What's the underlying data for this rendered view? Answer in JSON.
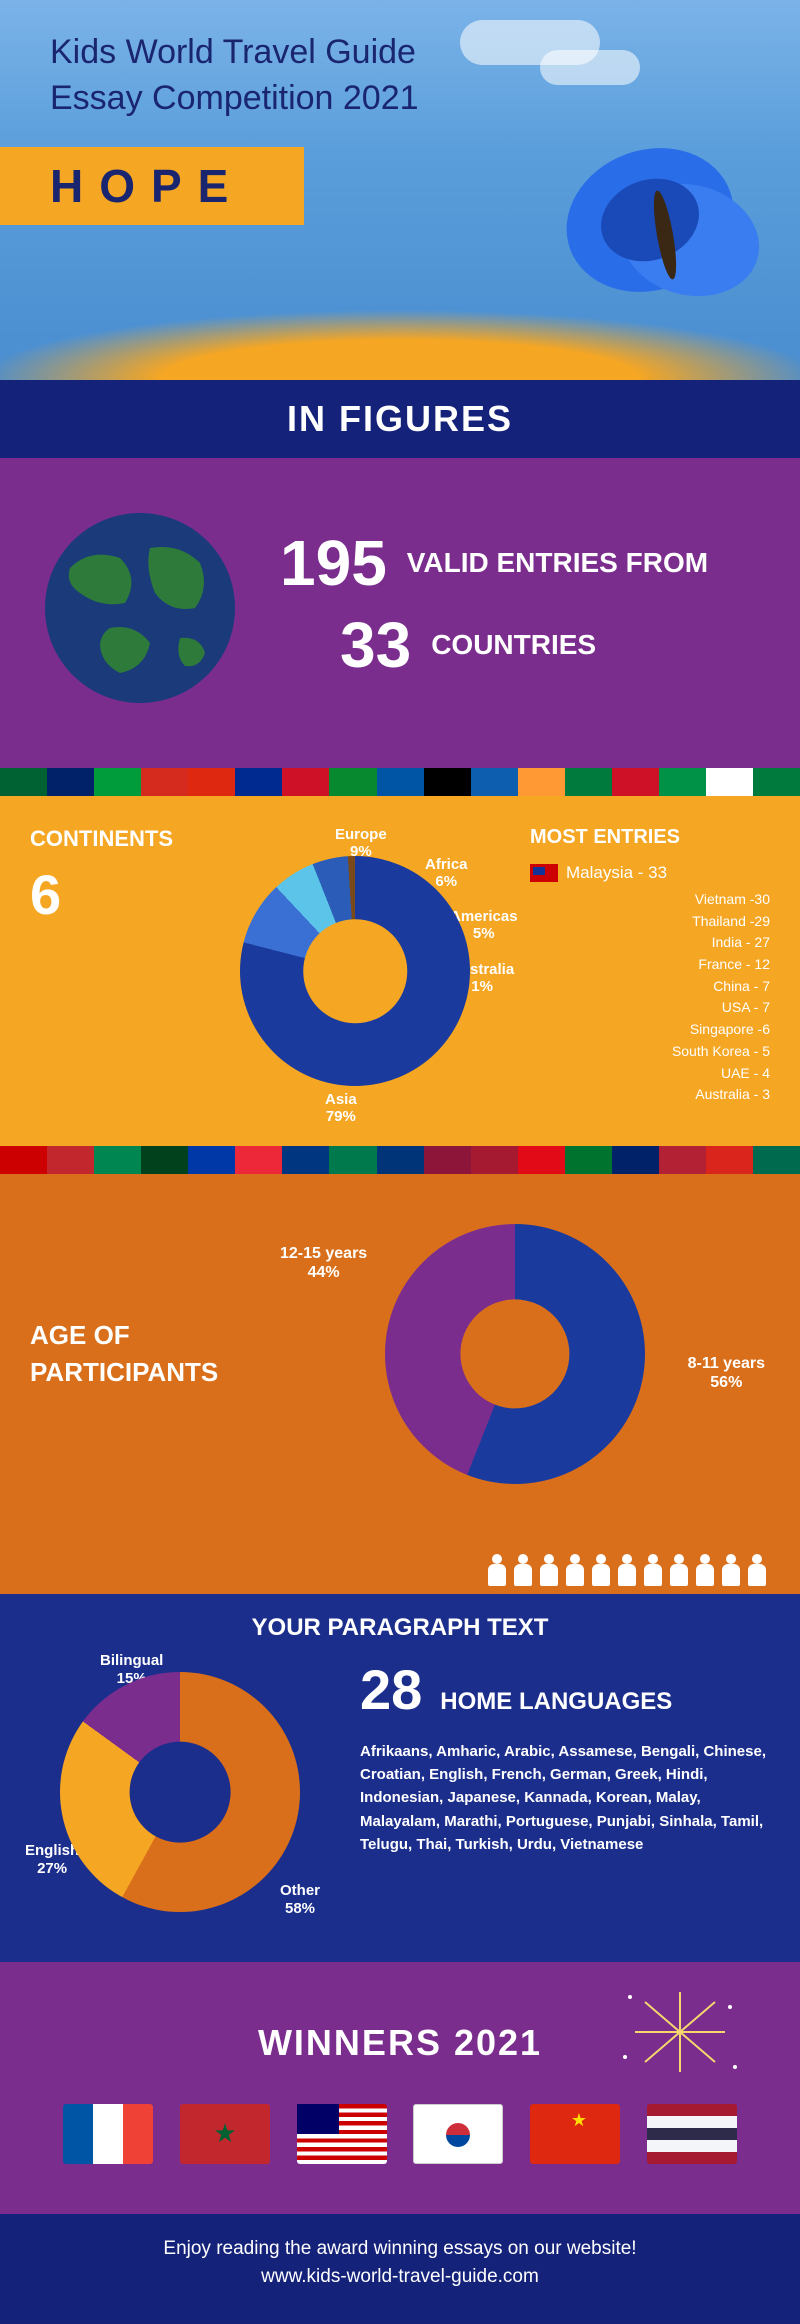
{
  "hero": {
    "title_line1": "Kids World Travel Guide",
    "title_line2": "Essay Competition 2021",
    "hope": "HOPE",
    "bg_gradient": [
      "#7bb3e8",
      "#5a9edb",
      "#4a8dd0"
    ],
    "sunflower_color": "#f5a623",
    "title_color": "#1a2570",
    "hope_bg": "#f5a623"
  },
  "in_figures": {
    "heading": "IN FIGURES",
    "bg": "#15227a",
    "text_color": "#ffffff"
  },
  "stats": {
    "bg": "#7b2d8e",
    "entries_num": "195",
    "entries_label": "VALID ENTRIES FROM",
    "countries_num": "33",
    "countries_label": "COUNTRIES",
    "globe_water": "#1a3a7a",
    "globe_land": "#2d7a3a"
  },
  "flag_colors_1": [
    "#006233",
    "#012169",
    "#009c3b",
    "#d52b1e",
    "#de2910",
    "#002a8f",
    "#ce1126",
    "#078930",
    "#0055a4",
    "#000000",
    "#0d5eaf",
    "#ff9933",
    "#007a3d",
    "#ce1126",
    "#009246",
    "#ffffff",
    "#007a3d"
  ],
  "continents": {
    "bg": "#f5a623",
    "title": "CONTINENTS",
    "count": "6",
    "donut": {
      "type": "donut",
      "inner_bg": "#f5a623",
      "segments": [
        {
          "label": "Asia",
          "pct": 79,
          "color": "#1a3a9e"
        },
        {
          "label": "Europe",
          "pct": 9,
          "color": "#3a6fd4"
        },
        {
          "label": "Africa",
          "pct": 6,
          "color": "#5bc4e8"
        },
        {
          "label": "Americas",
          "pct": 5,
          "color": "#2a5cb8"
        },
        {
          "label": "Australia",
          "pct": 1,
          "color": "#7a4a1a"
        }
      ]
    },
    "donut_labels": {
      "asia": "Asia 79%",
      "europe": "Europe 9%",
      "africa": "Africa 6%",
      "americas": "Americas 5%",
      "australia": "Australia 1%"
    },
    "most_title": "MOST ENTRIES",
    "most_first": "Malaysia - 33",
    "most_list": [
      "Vietnam -30",
      "Thailand -29",
      "India - 27",
      "France - 12",
      "China - 7",
      "USA - 7",
      "Singapore -6",
      "South Korea - 5",
      "UAE - 4",
      "Australia - 3"
    ]
  },
  "flag_colors_2": [
    "#cc0000",
    "#c1272d",
    "#008751",
    "#01411c",
    "#0038a8",
    "#ed2939",
    "#003580",
    "#007a4d",
    "#003478",
    "#8d153a",
    "#a51931",
    "#e30a17",
    "#00732f",
    "#012169",
    "#b22234",
    "#da251d",
    "#006a4e"
  ],
  "age": {
    "bg": "#d96f1a",
    "title": "AGE OF PARTICIPANTS",
    "donut": {
      "type": "donut",
      "inner_bg": "#d96f1a",
      "segments": [
        {
          "label": "8-11 years",
          "pct": 56,
          "color": "#1a3a9e"
        },
        {
          "label": "12-15 years",
          "pct": 44,
          "color": "#7b2d8e"
        }
      ]
    },
    "label_a": "12-15 years 44%",
    "label_b": "8-11 years 56%"
  },
  "languages": {
    "bg": "#1c2e8c",
    "paragraph_title": "YOUR PARAGRAPH TEXT",
    "count": "28",
    "home_lbl": "HOME LANGUAGES",
    "list": "Afrikaans, Amharic, Arabic, Assamese,  Bengali, Chinese, Croatian, English, French, German, Greek, Hindi,  Indonesian, Japanese, Kannada, Korean, Malay, Malayalam, Marathi, Portuguese, Punjabi,  Sinhala, Tamil, Telugu, Thai, Turkish, Urdu, Vietnamese",
    "donut": {
      "type": "donut",
      "inner_bg": "#1c2e8c",
      "segments": [
        {
          "label": "Other",
          "pct": 58,
          "color": "#d96f1a"
        },
        {
          "label": "English",
          "pct": 27,
          "color": "#f5a623"
        },
        {
          "label": "Bilingual",
          "pct": 15,
          "color": "#7b2d8e"
        }
      ]
    },
    "labels": {
      "bilingual": "Bilingual 15%",
      "english": "English 27%",
      "other": "Other 58%"
    }
  },
  "winners": {
    "bg": "#7b2d8e",
    "title": "WINNERS 2021",
    "flags": [
      {
        "name": "france",
        "stripes": [
          "#0055a4",
          "#ffffff",
          "#ef4135"
        ],
        "dir": "v"
      },
      {
        "name": "morocco",
        "bg": "#c1272d",
        "star": "#006233"
      },
      {
        "name": "malaysia",
        "bg": "#cc0000"
      },
      {
        "name": "south-korea",
        "bg": "#ffffff"
      },
      {
        "name": "china",
        "bg": "#de2910"
      },
      {
        "name": "thailand",
        "stripes": [
          "#a51931",
          "#f4f5f8",
          "#2d2a4a",
          "#f4f5f8",
          "#a51931"
        ],
        "dir": "h"
      }
    ]
  },
  "footer": {
    "bg": "#15227a",
    "line1": "Enjoy reading the award winning essays on our website!",
    "line2": "www.kids-world-travel-guide.com"
  }
}
